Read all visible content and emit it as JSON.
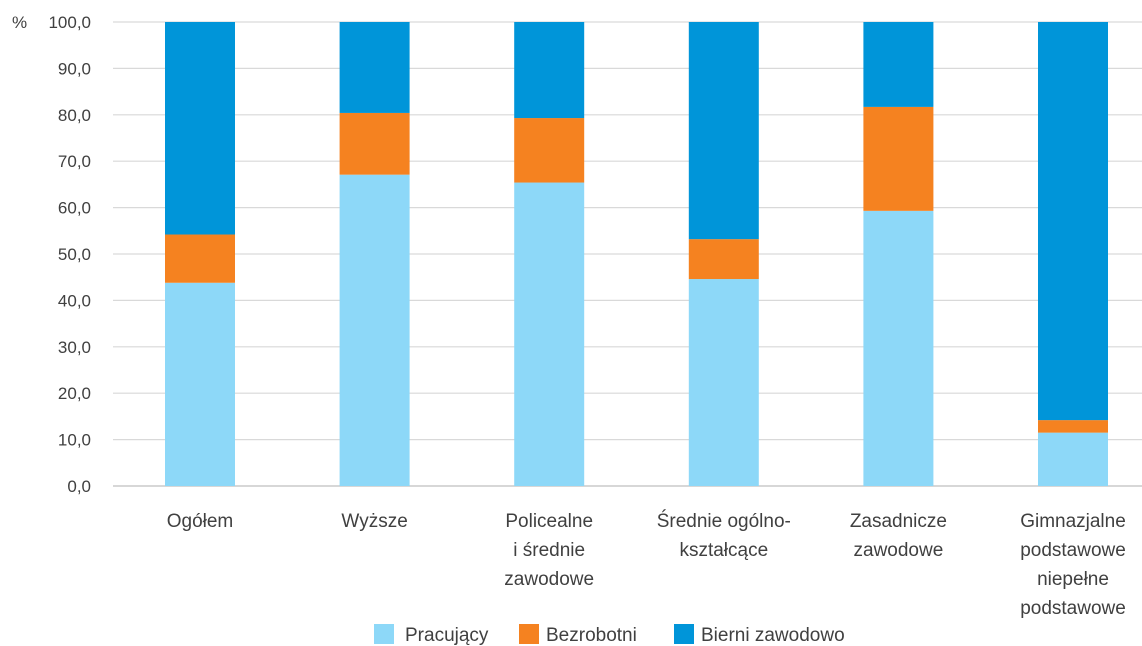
{
  "chart_data": {
    "type": "bar",
    "stacked": true,
    "title": "",
    "xlabel": "",
    "ylabel": "",
    "y_unit_label": "%",
    "ylim": [
      0,
      100
    ],
    "y_ticks": [
      "0,0",
      "10,0",
      "20,0",
      "30,0",
      "40,0",
      "50,0",
      "60,0",
      "70,0",
      "80,0",
      "90,0",
      "100,0"
    ],
    "grid": true,
    "legend_position": "bottom",
    "categories": [
      [
        "Ogółem"
      ],
      [
        "Wyższe"
      ],
      [
        "Policealne",
        "i średnie",
        "zawodowe"
      ],
      [
        "Średnie ogólno-",
        "kształcące"
      ],
      [
        "Zasadnicze",
        "zawodowe"
      ],
      [
        "Gimnazjalne",
        "podstawowe",
        "niepełne",
        "podstawowe"
      ]
    ],
    "series": [
      {
        "name": "Pracujący",
        "color": "#8dd8f8",
        "values": [
          43.8,
          67.1,
          65.4,
          44.6,
          59.3,
          11.5
        ]
      },
      {
        "name": "Bezrobotni",
        "color": "#f58220",
        "values": [
          10.4,
          13.3,
          13.9,
          8.6,
          22.4,
          2.7
        ]
      },
      {
        "name": "Bierni zawodowo",
        "color": "#0095d9",
        "values": [
          45.8,
          19.6,
          20.7,
          46.8,
          18.3,
          85.8
        ]
      }
    ]
  }
}
